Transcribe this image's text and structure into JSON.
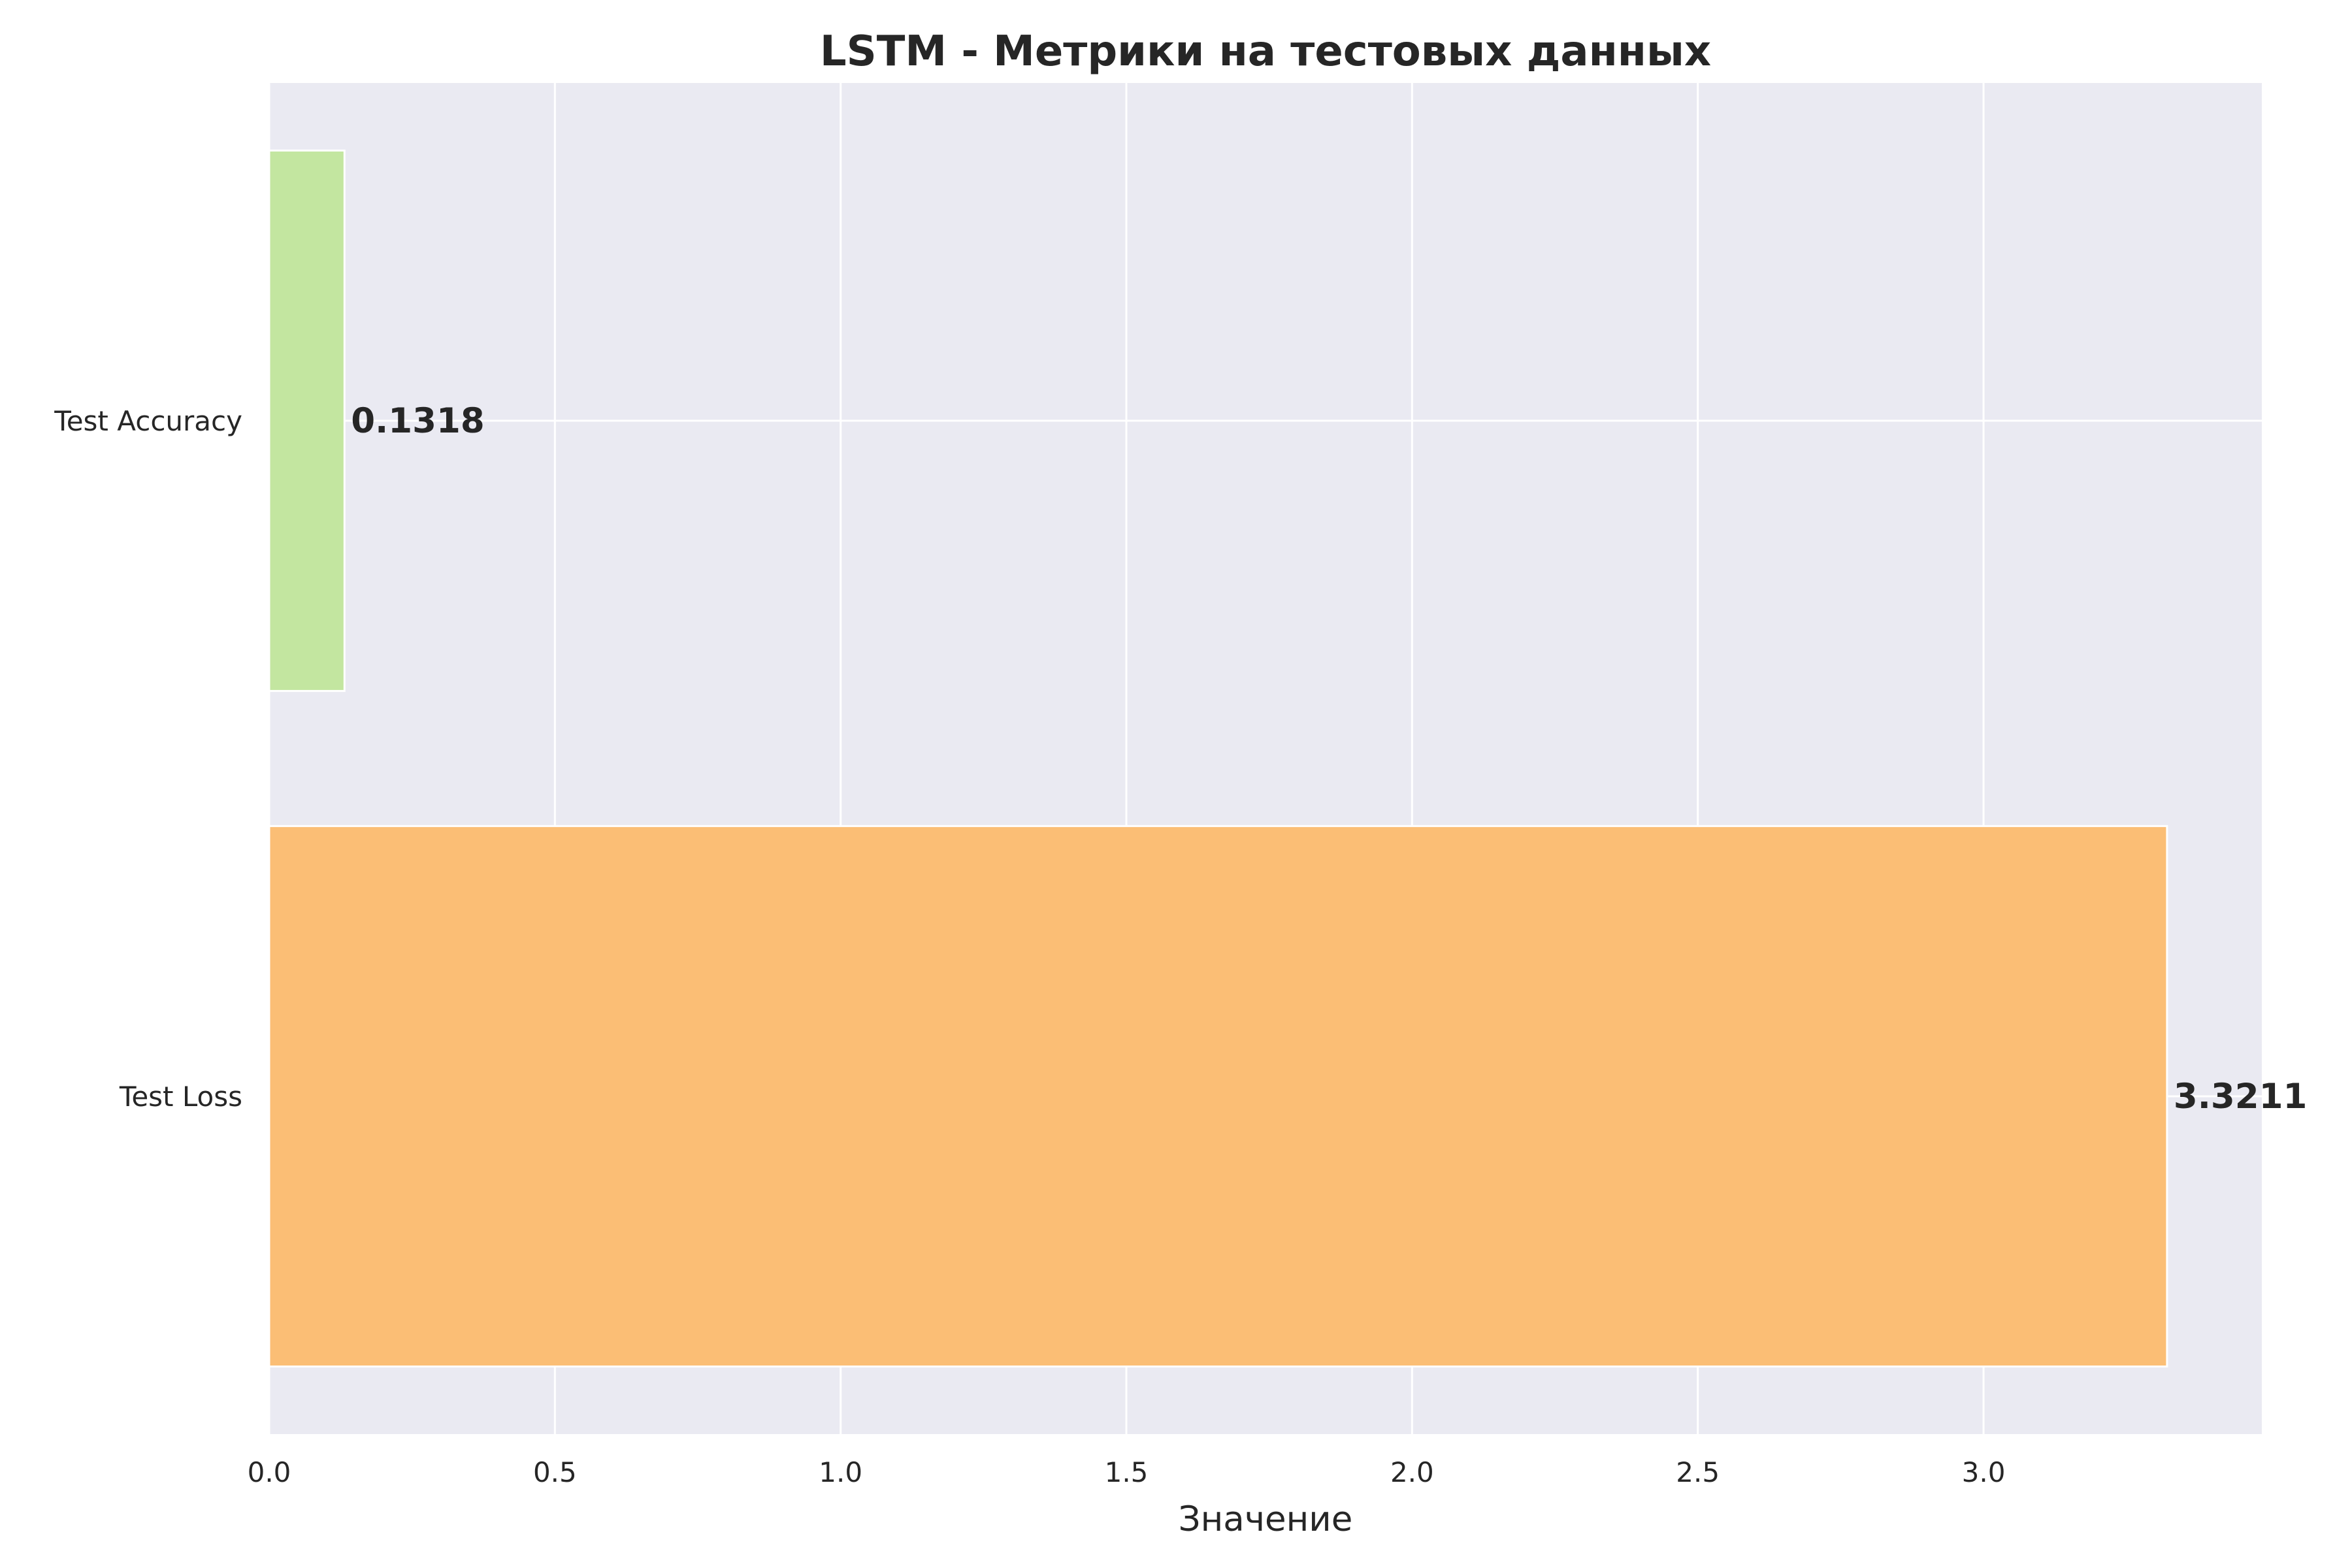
{
  "chart_data": {
    "type": "bar",
    "orientation": "horizontal",
    "title": "LSTM - Метрики на тестовых данных",
    "xlabel": "Значение",
    "ylabel": "",
    "categories": [
      "Test Accuracy",
      "Test Loss"
    ],
    "values": [
      0.1318,
      3.3211
    ],
    "value_labels": [
      "0.1318",
      "3.3211"
    ],
    "colors": [
      "#c3e6a0",
      "#fbbe75"
    ],
    "xlim": [
      0,
      3.487
    ],
    "xticks": [
      0.0,
      0.5,
      1.0,
      1.5,
      2.0,
      2.5,
      3.0
    ],
    "xtick_labels": [
      "0.0",
      "0.5",
      "1.0",
      "1.5",
      "2.0",
      "2.5",
      "3.0"
    ],
    "grid": true,
    "background": "#eaeaf2",
    "grid_color": "#ffffff"
  }
}
